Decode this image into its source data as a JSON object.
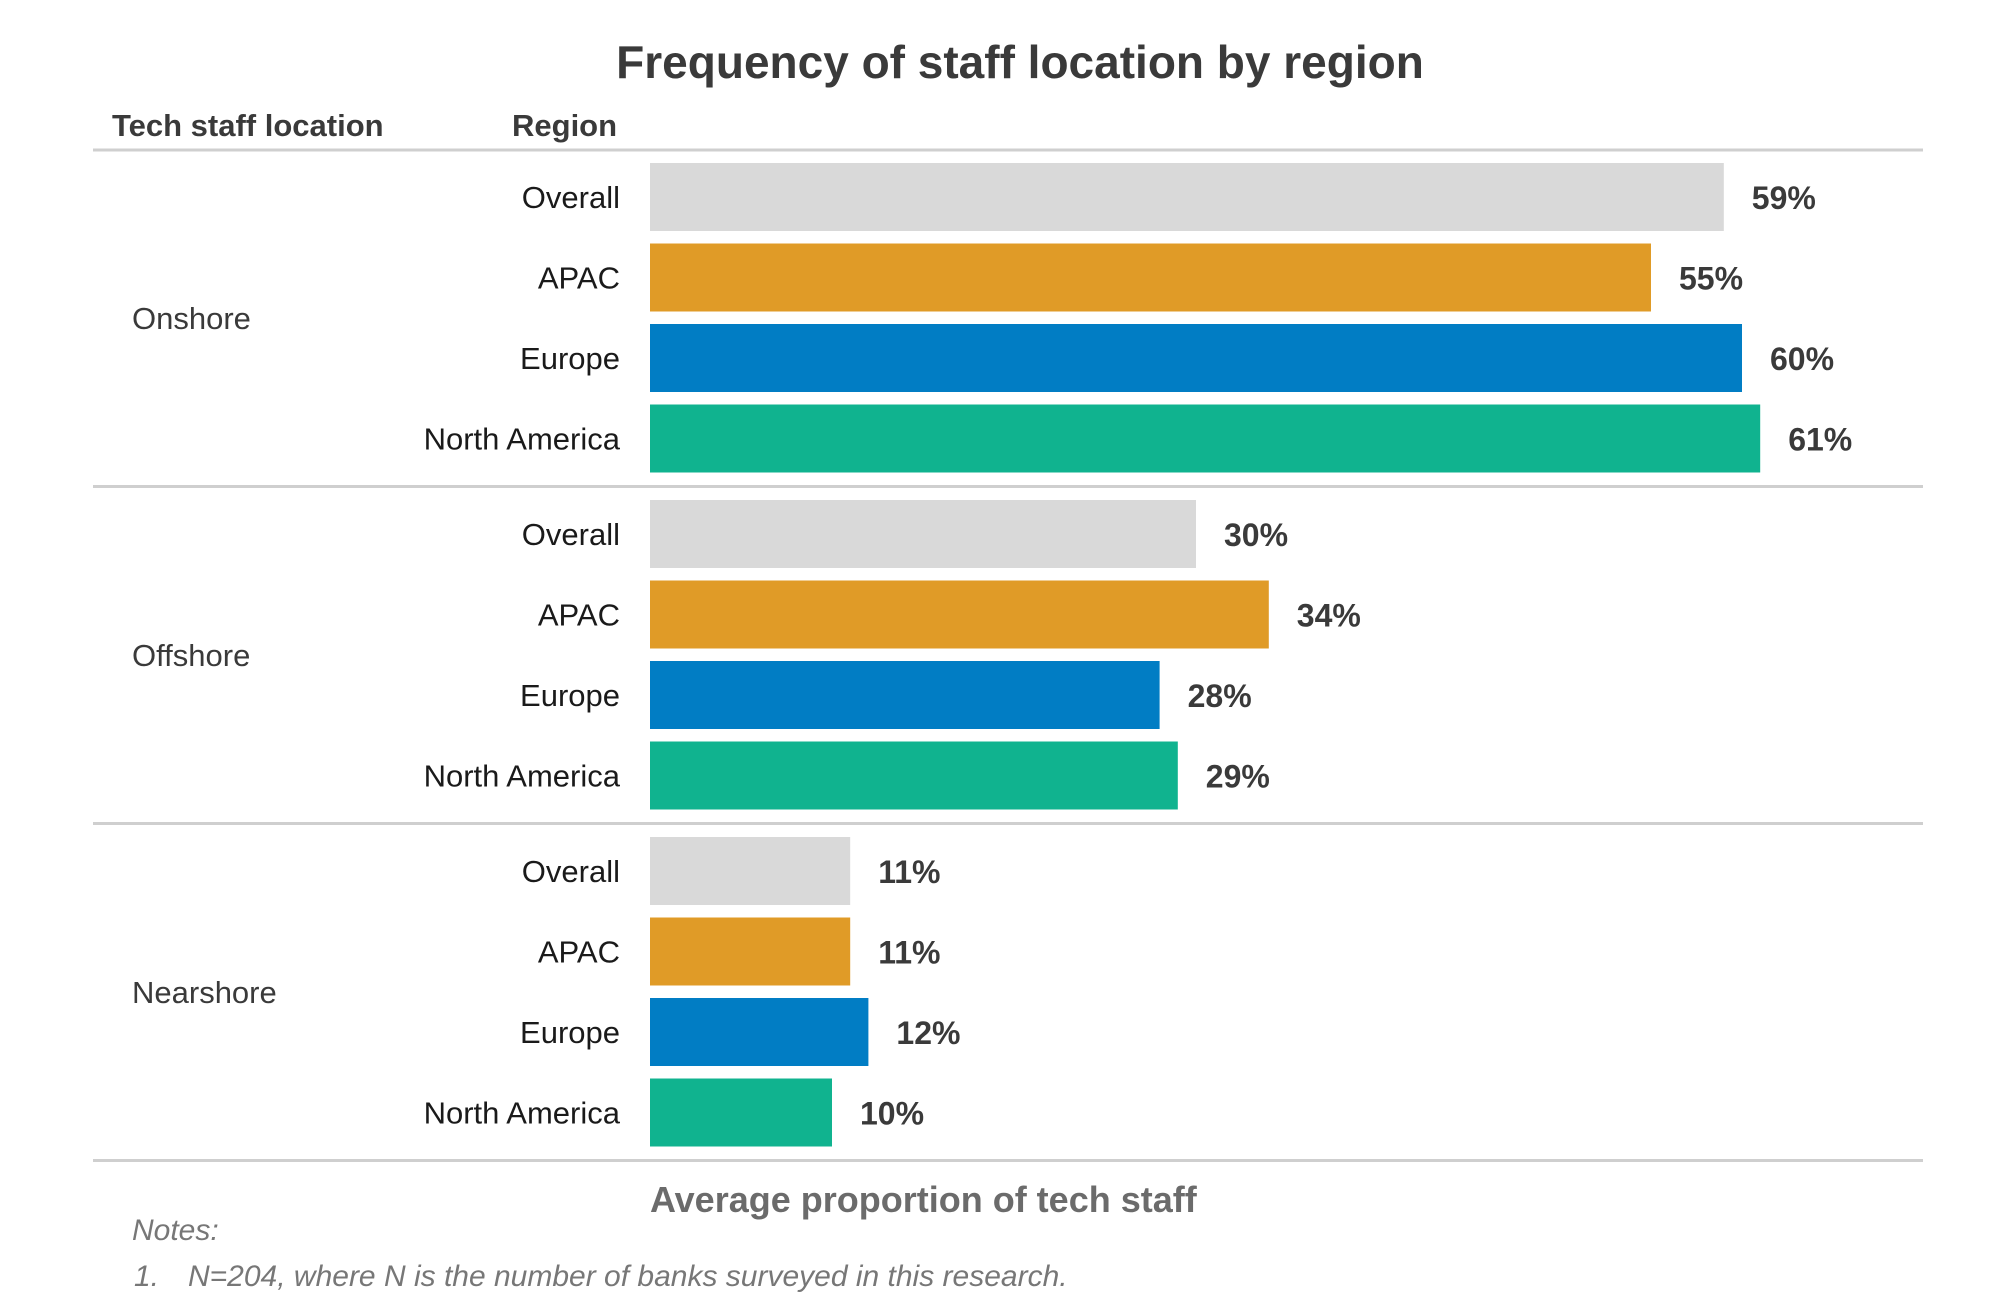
{
  "chart_data": {
    "type": "bar",
    "orientation": "horizontal",
    "title": "Frequency of staff location by region",
    "column_headers": {
      "group": "Tech staff location",
      "category": "Region"
    },
    "xlabel": "Average proportion of tech staff",
    "xlim": [
      0,
      65
    ],
    "value_suffix": "%",
    "groups": [
      {
        "name": "Onshore",
        "bars": [
          {
            "label": "Overall",
            "value": 59,
            "color": "#d9d9d9"
          },
          {
            "label": "APAC",
            "value": 55,
            "color": "#e09b27"
          },
          {
            "label": "Europe",
            "value": 60,
            "color": "#017dc4"
          },
          {
            "label": "North America",
            "value": 61,
            "color": "#10b38f"
          }
        ]
      },
      {
        "name": "Offshore",
        "bars": [
          {
            "label": "Overall",
            "value": 30,
            "color": "#d9d9d9"
          },
          {
            "label": "APAC",
            "value": 34,
            "color": "#e09b27"
          },
          {
            "label": "Europe",
            "value": 28,
            "color": "#017dc4"
          },
          {
            "label": "North America",
            "value": 29,
            "color": "#10b38f"
          }
        ]
      },
      {
        "name": "Nearshore",
        "bars": [
          {
            "label": "Overall",
            "value": 11,
            "color": "#d9d9d9"
          },
          {
            "label": "APAC",
            "value": 11,
            "color": "#e09b27"
          },
          {
            "label": "Europe",
            "value": 12,
            "color": "#017dc4"
          },
          {
            "label": "North America",
            "value": 10,
            "color": "#10b38f"
          }
        ]
      }
    ],
    "grid": false,
    "legend": "none"
  },
  "notes": {
    "heading": "Notes:",
    "items": [
      {
        "number": "1.",
        "text": "N=204, where N is the number of banks surveyed in this research."
      }
    ]
  }
}
